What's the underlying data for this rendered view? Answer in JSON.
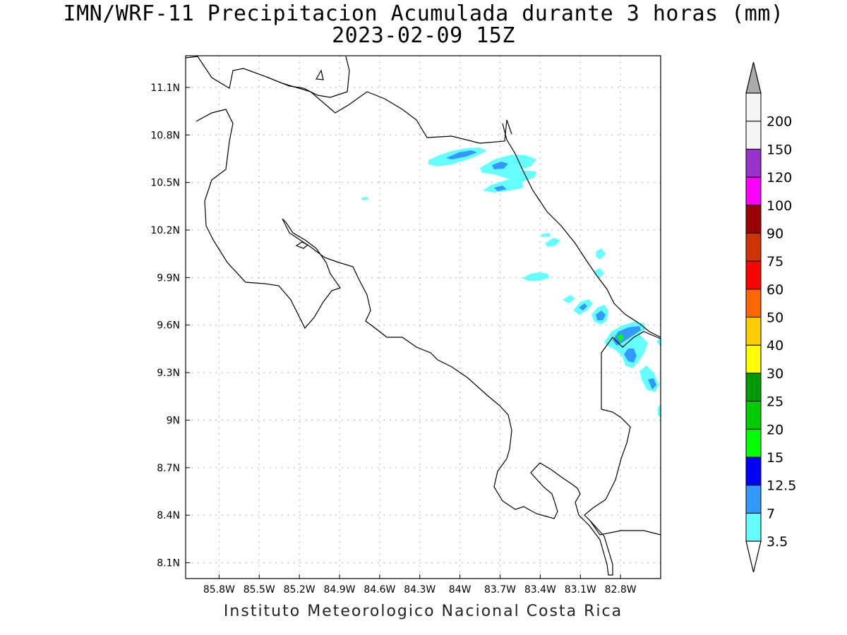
{
  "title": {
    "line1": "IMN/WRF-11 Precipitacion Acumulada durante 3 horas (mm)",
    "line2": "2023-02-09 15Z"
  },
  "credit": "Instituto Meteorologico Nacional Costa Rica",
  "map": {
    "lon_range": [
      -86.05,
      -82.5
    ],
    "lat_range": [
      8.0,
      11.3
    ],
    "lon_ticks": [
      "85.8W",
      "85.5W",
      "85.2W",
      "84.9W",
      "84.6W",
      "84.3W",
      "84W",
      "83.7W",
      "83.4W",
      "83.1W",
      "82.8W"
    ],
    "lon_tick_values": [
      -85.8,
      -85.5,
      -85.2,
      -84.9,
      -84.6,
      -84.3,
      -84.0,
      -83.7,
      -83.4,
      -83.1,
      -82.8
    ],
    "lat_ticks": [
      "11.1N",
      "10.8N",
      "10.5N",
      "10.2N",
      "9.9N",
      "9.6N",
      "9.3N",
      "9N",
      "8.7N",
      "8.4N",
      "8.1N"
    ],
    "lat_tick_values": [
      11.1,
      10.8,
      10.5,
      10.2,
      9.9,
      9.6,
      9.3,
      9.0,
      8.7,
      8.4,
      8.1
    ],
    "grid": "dotted"
  },
  "colorbar": {
    "labels": [
      "3.5",
      "7",
      "12.5",
      "15",
      "20",
      "25",
      "30",
      "40",
      "50",
      "60",
      "75",
      "90",
      "100",
      "120",
      "150",
      "200"
    ],
    "colors": [
      "#66ffff",
      "#3399ff",
      "#0000ff",
      "#00ff00",
      "#00cc00",
      "#009900",
      "#ffff00",
      "#ffcc00",
      "#ff6600",
      "#ff0000",
      "#cc3300",
      "#990000",
      "#ff00ff",
      "#9933cc",
      "#f5f5f5",
      "#aaaaaa"
    ],
    "under_color": "#ffffff",
    "over_color": "#aaaaaa"
  }
}
